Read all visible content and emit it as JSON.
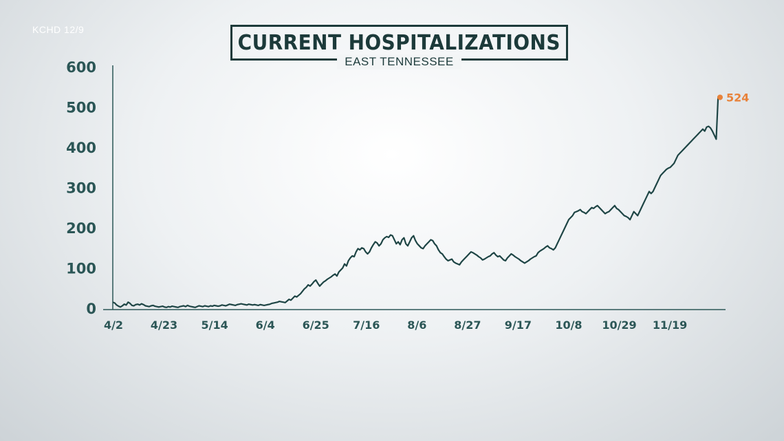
{
  "source_label": "KCHD 12/9",
  "chart_data": {
    "type": "line",
    "title": "CURRENT HOSPITALIZATIONS",
    "subtitle": "EAST TENNESSEE",
    "xlabel": "",
    "ylabel": "",
    "ylim": [
      0,
      600
    ],
    "yticks": [
      0,
      100,
      200,
      300,
      400,
      500,
      600
    ],
    "xticks": [
      "4/2",
      "4/23",
      "5/14",
      "6/4",
      "6/25",
      "7/16",
      "8/6",
      "8/27",
      "9/17",
      "10/8",
      "10/29",
      "11/19"
    ],
    "grid": false,
    "line_color": "#1e4545",
    "end_label": "524",
    "end_color": "#e8823a",
    "x_start": "4/2",
    "x_end": "12/9",
    "series": [
      {
        "values": [
          15,
          13,
          8,
          5,
          3,
          6,
          10,
          8,
          15,
          12,
          7,
          6,
          9,
          10,
          8,
          11,
          9,
          6,
          5,
          4,
          6,
          7,
          5,
          4,
          3,
          4,
          5,
          3,
          2,
          4,
          3,
          5,
          4,
          3,
          2,
          4,
          5,
          6,
          4,
          7,
          5,
          4,
          3,
          2,
          4,
          6,
          5,
          4,
          6,
          5,
          4,
          6,
          5,
          7,
          6,
          5,
          6,
          8,
          7,
          6,
          8,
          10,
          9,
          8,
          7,
          9,
          10,
          11,
          10,
          9,
          8,
          10,
          9,
          8,
          9,
          8,
          7,
          9,
          8,
          7,
          8,
          9,
          10,
          12,
          13,
          14,
          15,
          17,
          16,
          15,
          14,
          18,
          22,
          20,
          25,
          30,
          28,
          32,
          36,
          42,
          48,
          52,
          58,
          55,
          60,
          66,
          70,
          62,
          55,
          60,
          65,
          68,
          72,
          75,
          78,
          82,
          85,
          80,
          90,
          95,
          100,
          110,
          105,
          118,
          125,
          130,
          128,
          140,
          148,
          145,
          150,
          148,
          140,
          135,
          140,
          150,
          158,
          165,
          162,
          155,
          160,
          170,
          175,
          178,
          176,
          182,
          180,
          170,
          160,
          165,
          158,
          170,
          175,
          160,
          155,
          165,
          175,
          180,
          168,
          160,
          155,
          150,
          148,
          155,
          160,
          165,
          170,
          168,
          160,
          155,
          145,
          138,
          135,
          128,
          122,
          118,
          120,
          122,
          115,
          112,
          110,
          108,
          115,
          120,
          125,
          130,
          135,
          140,
          138,
          135,
          132,
          128,
          125,
          120,
          122,
          125,
          128,
          130,
          135,
          138,
          132,
          128,
          130,
          125,
          120,
          118,
          125,
          130,
          135,
          132,
          128,
          125,
          122,
          118,
          115,
          112,
          115,
          118,
          122,
          125,
          128,
          130,
          138,
          142,
          145,
          148,
          152,
          155,
          150,
          148,
          145,
          150,
          160,
          170,
          180,
          190,
          200,
          210,
          220,
          225,
          230,
          238,
          240,
          242,
          245,
          240,
          238,
          235,
          240,
          245,
          250,
          248,
          252,
          255,
          250,
          245,
          240,
          235,
          238,
          240,
          245,
          250,
          255,
          248,
          245,
          240,
          235,
          230,
          228,
          225,
          220,
          230,
          240,
          235,
          230,
          240,
          250,
          260,
          270,
          280,
          290,
          285,
          290,
          300,
          310,
          320,
          330,
          335,
          340,
          345,
          348,
          350,
          355,
          360,
          370,
          380,
          385,
          390,
          395,
          400,
          405,
          410,
          415,
          420,
          425,
          430,
          435,
          440,
          445,
          440,
          450,
          452,
          448,
          440,
          430,
          420,
          525,
          524
        ]
      }
    ]
  }
}
